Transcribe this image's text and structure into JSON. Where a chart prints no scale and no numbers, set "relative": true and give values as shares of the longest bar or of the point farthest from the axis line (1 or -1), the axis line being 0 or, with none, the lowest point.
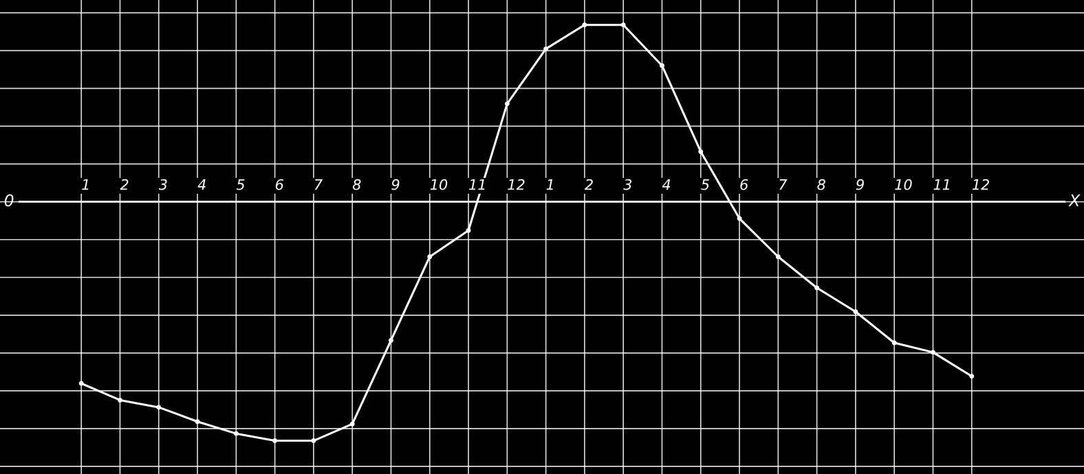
{
  "chart_data": {
    "type": "line",
    "relative": true,
    "categories": [
      "1",
      "2",
      "3",
      "4",
      "5",
      "6",
      "7",
      "8",
      "9",
      "10",
      "11",
      "12",
      "1",
      "2",
      "3",
      "4",
      "5",
      "6",
      "7",
      "8",
      "9",
      "10",
      "11",
      "12"
    ],
    "series": [
      {
        "color": "#ffffff",
        "values": [
          -0.76,
          -0.83,
          -0.86,
          -0.92,
          -0.97,
          -1,
          -1,
          -0.93,
          -0.58,
          -0.23,
          -0.12,
          0.41,
          0.64,
          0.74,
          0.74,
          0.57,
          0.21,
          -0.07,
          -0.23,
          -0.36,
          -0.46,
          -0.59,
          -0.63,
          -0.73
        ]
      }
    ],
    "annotations": [
      "0",
      "X"
    ],
    "grid": true,
    "marker": "circle",
    "line_style": "solid",
    "legend": false
  }
}
